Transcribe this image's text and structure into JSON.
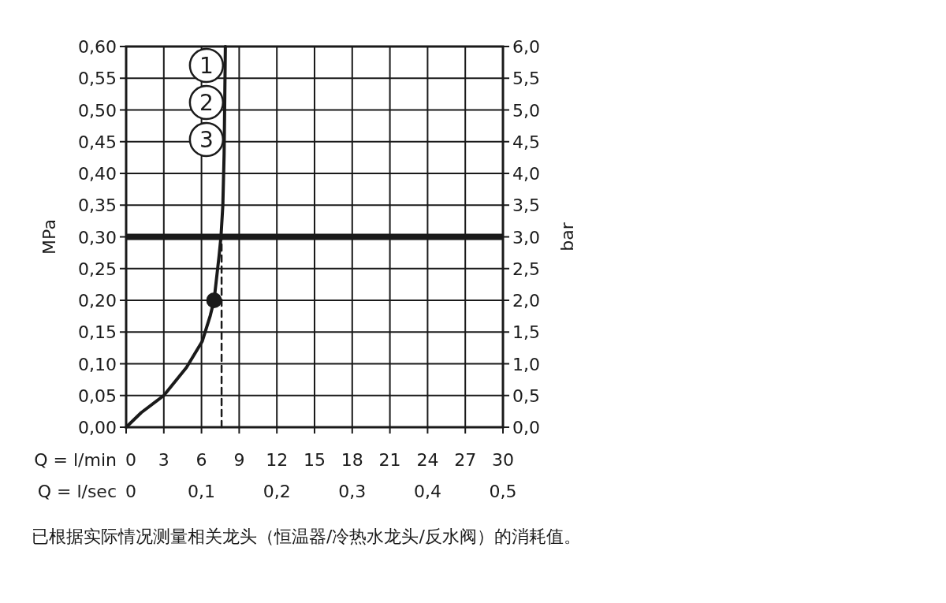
{
  "chart_data": {
    "type": "line",
    "xlabel": "Q = l/min",
    "x2label": "Q = l/sec",
    "ylabel": "MPa",
    "y2label": "bar",
    "xlim": [
      0,
      30
    ],
    "xticks": [
      0,
      3,
      6,
      9,
      12,
      15,
      18,
      21,
      24,
      27,
      30
    ],
    "x2lim": [
      0,
      0.5
    ],
    "x2ticks": [
      {
        "value": 0,
        "label": "0"
      },
      {
        "value": 0.1,
        "label": "0,1"
      },
      {
        "value": 0.2,
        "label": "0,2"
      },
      {
        "value": 0.3,
        "label": "0,3"
      },
      {
        "value": 0.4,
        "label": "0,4"
      },
      {
        "value": 0.5,
        "label": "0,5"
      }
    ],
    "ylim": [
      0,
      0.6
    ],
    "yticks": [
      {
        "value": 0,
        "label": "0,00"
      },
      {
        "value": 0.05,
        "label": "0,05"
      },
      {
        "value": 0.1,
        "label": "0,10"
      },
      {
        "value": 0.15,
        "label": "0,15"
      },
      {
        "value": 0.2,
        "label": "0,20"
      },
      {
        "value": 0.25,
        "label": "0,25"
      },
      {
        "value": 0.3,
        "label": "0,30"
      },
      {
        "value": 0.35,
        "label": "0,35"
      },
      {
        "value": 0.4,
        "label": "0,40"
      },
      {
        "value": 0.45,
        "label": "0,45"
      },
      {
        "value": 0.5,
        "label": "0,50"
      },
      {
        "value": 0.55,
        "label": "0,55"
      },
      {
        "value": 0.6,
        "label": "0,60"
      }
    ],
    "y2lim": [
      0,
      6
    ],
    "y2ticks": [
      {
        "value": 0,
        "label": "0,0"
      },
      {
        "value": 0.5,
        "label": "0,5"
      },
      {
        "value": 1,
        "label": "1,0"
      },
      {
        "value": 1.5,
        "label": "1,5"
      },
      {
        "value": 2,
        "label": "2,0"
      },
      {
        "value": 2.5,
        "label": "2,5"
      },
      {
        "value": 3,
        "label": "3,0"
      },
      {
        "value": 3.5,
        "label": "3,5"
      },
      {
        "value": 4,
        "label": "4,0"
      },
      {
        "value": 4.5,
        "label": "4,5"
      },
      {
        "value": 5,
        "label": "5,0"
      },
      {
        "value": 5.5,
        "label": "5,5"
      },
      {
        "value": 6,
        "label": "6,0"
      }
    ],
    "grid": true,
    "series": [
      {
        "color": "#1a1a1a",
        "line_style": "solid",
        "x": [
          0,
          1.2,
          3,
          4.8,
          6.05,
          6.7,
          7.0,
          7.4,
          7.55,
          7.7,
          7.8,
          7.9
        ],
        "values": [
          0,
          0.023,
          0.05,
          0.094,
          0.135,
          0.176,
          0.2,
          0.27,
          0.3,
          0.35,
          0.43,
          0.6
        ]
      },
      {
        "type": "scatter",
        "color": "#1a1a1a",
        "marker": "circle",
        "x": [
          7.0
        ],
        "values": [
          0.2
        ]
      },
      {
        "type": "line",
        "color": "#1a1a1a",
        "line_style": "dashed",
        "x": [
          7.6,
          7.6
        ],
        "values": [
          0,
          0.3
        ]
      }
    ],
    "ref_lines": [
      {
        "axis": "y",
        "value": 0.3,
        "color": "#1a1a1a"
      }
    ],
    "annotations": [
      {
        "text": "1"
      },
      {
        "text": "2"
      },
      {
        "text": "3"
      },
      "已根据实际情况测量相关龙头（恒温器/冷热水龙头/反水阀）的消耗值。"
    ]
  }
}
